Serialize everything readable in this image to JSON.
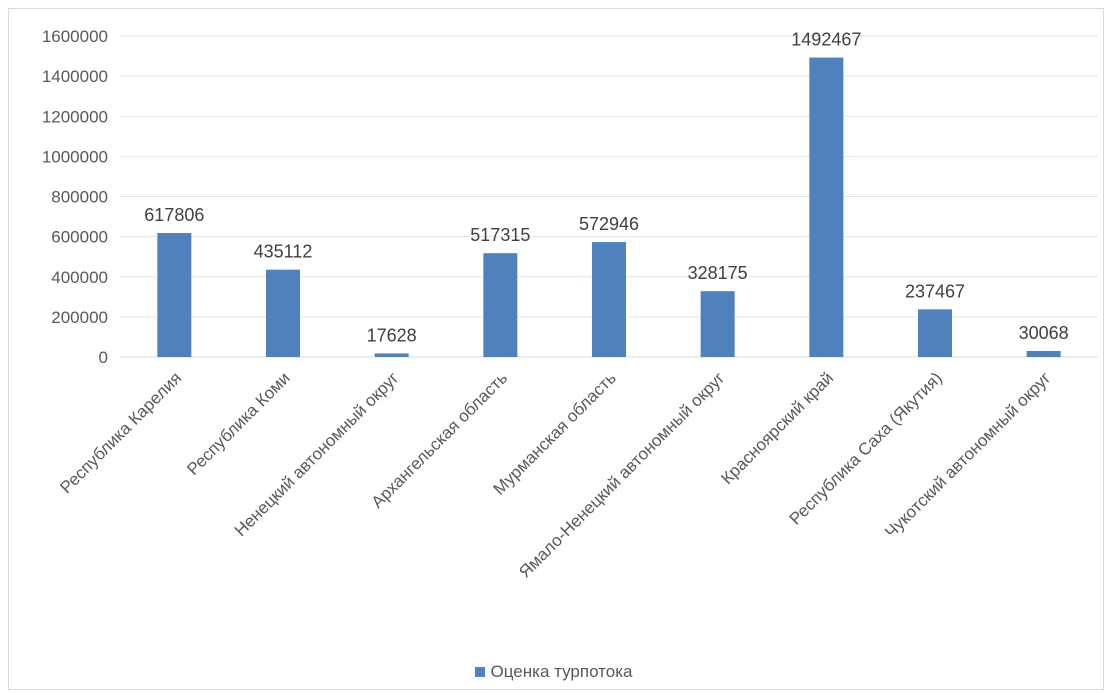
{
  "chart_data": {
    "type": "bar",
    "categories": [
      "Республика Карелия",
      "Республика Коми",
      "Ненецкий автономный округ",
      "Архангельская область",
      "Мурманская область",
      "Ямало-Ненецкий автономный округ",
      "Красноярский край",
      "Республика Саха (Якутия)",
      "Чукотский автономный округ"
    ],
    "series": [
      {
        "name": "Оценка турпотока",
        "values": [
          617806,
          435112,
          17628,
          517315,
          572946,
          328175,
          1492467,
          237467,
          30068
        ],
        "color": "#4f81bd"
      }
    ],
    "ylim": [
      0,
      1600000
    ],
    "yticks": [
      0,
      200000,
      400000,
      600000,
      800000,
      1000000,
      1200000,
      1400000,
      1600000
    ],
    "grid": true,
    "legend_position": "bottom",
    "data_labels": true,
    "title": "",
    "xlabel": "",
    "ylabel": ""
  }
}
